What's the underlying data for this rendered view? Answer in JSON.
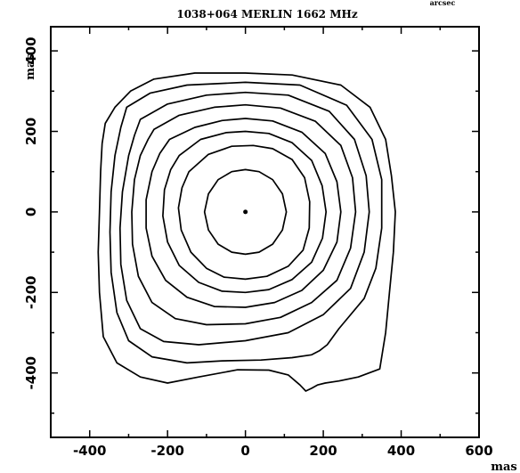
{
  "chart_data": {
    "type": "contour",
    "title": "1038+064 MERLIN 1662 MHz",
    "corner_label": "arcsec",
    "xlabel": "mas",
    "ylabel": "mas",
    "xlim": [
      -500,
      600
    ],
    "ylim": [
      -560,
      460
    ],
    "xticks": [
      -400,
      -200,
      0,
      200,
      400,
      600
    ],
    "yticks": [
      -400,
      -200,
      0,
      200,
      400
    ],
    "peak": {
      "x": 0,
      "y": 0
    },
    "contours": [
      {
        "level": 1,
        "points": [
          [
            -360,
            220
          ],
          [
            -335,
            260
          ],
          [
            -295,
            300
          ],
          [
            -235,
            330
          ],
          [
            -130,
            345
          ],
          [
            0,
            345
          ],
          [
            120,
            340
          ],
          [
            245,
            315
          ],
          [
            320,
            260
          ],
          [
            360,
            180
          ],
          [
            375,
            90
          ],
          [
            385,
            0
          ],
          [
            380,
            -100
          ],
          [
            370,
            -200
          ],
          [
            360,
            -300
          ],
          [
            345,
            -390
          ],
          [
            290,
            -410
          ],
          [
            240,
            -420
          ],
          [
            205,
            -425
          ],
          [
            185,
            -430
          ],
          [
            170,
            -438
          ],
          [
            155,
            -445
          ],
          [
            140,
            -430
          ],
          [
            110,
            -405
          ],
          [
            60,
            -393
          ],
          [
            -20,
            -392
          ],
          [
            -120,
            -410
          ],
          [
            -200,
            -425
          ],
          [
            -270,
            -410
          ],
          [
            -330,
            -375
          ],
          [
            -365,
            -310
          ],
          [
            -375,
            -200
          ],
          [
            -378,
            -100
          ],
          [
            -375,
            0
          ],
          [
            -372,
            100
          ],
          [
            -368,
            170
          ],
          [
            -360,
            220
          ]
        ]
      },
      {
        "level": 2,
        "points": [
          [
            -305,
            260
          ],
          [
            -245,
            295
          ],
          [
            -150,
            315
          ],
          [
            0,
            322
          ],
          [
            140,
            315
          ],
          [
            260,
            265
          ],
          [
            325,
            180
          ],
          [
            350,
            80
          ],
          [
            350,
            -40
          ],
          [
            335,
            -140
          ],
          [
            305,
            -215
          ],
          [
            240,
            -290
          ],
          [
            210,
            -330
          ],
          [
            190,
            -345
          ],
          [
            170,
            -355
          ],
          [
            120,
            -362
          ],
          [
            40,
            -368
          ],
          [
            -60,
            -370
          ],
          [
            -150,
            -375
          ],
          [
            -240,
            -360
          ],
          [
            -300,
            -320
          ],
          [
            -330,
            -250
          ],
          [
            -345,
            -150
          ],
          [
            -348,
            -50
          ],
          [
            -345,
            50
          ],
          [
            -335,
            140
          ],
          [
            -320,
            210
          ],
          [
            -305,
            260
          ]
        ]
      },
      {
        "level": 3,
        "points": [
          [
            -270,
            230
          ],
          [
            -200,
            268
          ],
          [
            -100,
            290
          ],
          [
            0,
            297
          ],
          [
            110,
            290
          ],
          [
            215,
            250
          ],
          [
            280,
            180
          ],
          [
            310,
            90
          ],
          [
            318,
            0
          ],
          [
            305,
            -100
          ],
          [
            270,
            -190
          ],
          [
            200,
            -255
          ],
          [
            110,
            -300
          ],
          [
            0,
            -320
          ],
          [
            -120,
            -330
          ],
          [
            -210,
            -322
          ],
          [
            -270,
            -290
          ],
          [
            -305,
            -220
          ],
          [
            -320,
            -130
          ],
          [
            -322,
            -40
          ],
          [
            -316,
            50
          ],
          [
            -300,
            140
          ],
          [
            -285,
            190
          ],
          [
            -270,
            230
          ]
        ]
      },
      {
        "level": 4,
        "points": [
          [
            -235,
            205
          ],
          [
            -170,
            240
          ],
          [
            -80,
            260
          ],
          [
            0,
            266
          ],
          [
            90,
            258
          ],
          [
            180,
            225
          ],
          [
            245,
            165
          ],
          [
            275,
            85
          ],
          [
            283,
            0
          ],
          [
            270,
            -90
          ],
          [
            235,
            -170
          ],
          [
            170,
            -225
          ],
          [
            90,
            -262
          ],
          [
            0,
            -278
          ],
          [
            -100,
            -280
          ],
          [
            -180,
            -265
          ],
          [
            -240,
            -225
          ],
          [
            -275,
            -160
          ],
          [
            -290,
            -80
          ],
          [
            -292,
            0
          ],
          [
            -285,
            80
          ],
          [
            -270,
            140
          ],
          [
            -250,
            180
          ],
          [
            -235,
            205
          ]
        ]
      },
      {
        "level": 5,
        "points": [
          [
            -195,
            180
          ],
          [
            -130,
            210
          ],
          [
            -60,
            227
          ],
          [
            0,
            232
          ],
          [
            70,
            226
          ],
          [
            145,
            198
          ],
          [
            205,
            145
          ],
          [
            235,
            75
          ],
          [
            245,
            0
          ],
          [
            235,
            -75
          ],
          [
            200,
            -145
          ],
          [
            145,
            -195
          ],
          [
            75,
            -225
          ],
          [
            0,
            -237
          ],
          [
            -80,
            -235
          ],
          [
            -150,
            -212
          ],
          [
            -205,
            -170
          ],
          [
            -240,
            -110
          ],
          [
            -255,
            -40
          ],
          [
            -255,
            30
          ],
          [
            -240,
            100
          ],
          [
            -220,
            145
          ],
          [
            -195,
            180
          ]
        ]
      },
      {
        "level": 6,
        "points": [
          [
            -170,
            140
          ],
          [
            -115,
            180
          ],
          [
            -50,
            197
          ],
          [
            0,
            200
          ],
          [
            60,
            195
          ],
          [
            120,
            172
          ],
          [
            170,
            128
          ],
          [
            197,
            65
          ],
          [
            207,
            0
          ],
          [
            198,
            -65
          ],
          [
            170,
            -125
          ],
          [
            120,
            -168
          ],
          [
            60,
            -193
          ],
          [
            0,
            -200
          ],
          [
            -60,
            -197
          ],
          [
            -120,
            -175
          ],
          [
            -170,
            -133
          ],
          [
            -200,
            -75
          ],
          [
            -212,
            -10
          ],
          [
            -208,
            55
          ],
          [
            -192,
            105
          ],
          [
            -170,
            140
          ]
        ]
      },
      {
        "level": 7,
        "points": [
          [
            -145,
            100
          ],
          [
            -95,
            143
          ],
          [
            -35,
            163
          ],
          [
            20,
            165
          ],
          [
            70,
            157
          ],
          [
            120,
            130
          ],
          [
            152,
            85
          ],
          [
            165,
            25
          ],
          [
            164,
            -40
          ],
          [
            148,
            -95
          ],
          [
            110,
            -135
          ],
          [
            55,
            -160
          ],
          [
            0,
            -167
          ],
          [
            -55,
            -162
          ],
          [
            -100,
            -140
          ],
          [
            -140,
            -100
          ],
          [
            -165,
            -45
          ],
          [
            -172,
            10
          ],
          [
            -163,
            60
          ],
          [
            -145,
            100
          ]
        ]
      },
      {
        "level": 8,
        "points": [
          [
            -70,
            80
          ],
          [
            -35,
            100
          ],
          [
            0,
            105
          ],
          [
            35,
            100
          ],
          [
            70,
            80
          ],
          [
            95,
            45
          ],
          [
            105,
            0
          ],
          [
            95,
            -45
          ],
          [
            70,
            -80
          ],
          [
            35,
            -100
          ],
          [
            0,
            -105
          ],
          [
            -35,
            -100
          ],
          [
            -70,
            -80
          ],
          [
            -95,
            -45
          ],
          [
            -105,
            0
          ],
          [
            -95,
            45
          ],
          [
            -70,
            80
          ]
        ]
      }
    ]
  }
}
